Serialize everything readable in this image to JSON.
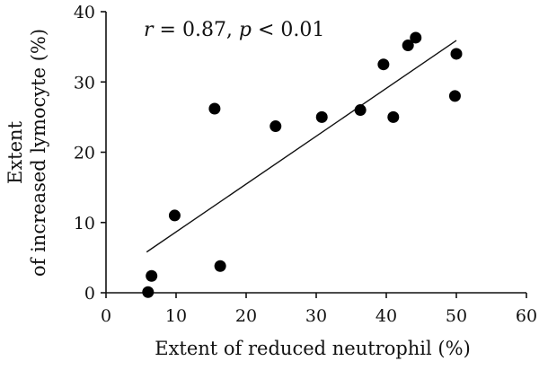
{
  "chart_data": {
    "type": "scatter",
    "xlabel": "Extent of reduced neutrophil (%)",
    "ylabel_lines": [
      "Extent",
      "of increased lymocyte (%)"
    ],
    "xlim": [
      0,
      60
    ],
    "ylim": [
      0,
      40
    ],
    "xticks": [
      0,
      10,
      20,
      30,
      40,
      50,
      60
    ],
    "yticks": [
      0,
      10,
      20,
      30,
      40
    ],
    "annotation": {
      "r_label": "r",
      "r_text": " = 0.87, ",
      "p_label": "p",
      "p_text": " < 0.01"
    },
    "grid": false,
    "legend": "none",
    "points": [
      {
        "x": 6.0,
        "y": 0.1
      },
      {
        "x": 6.5,
        "y": 2.4
      },
      {
        "x": 9.8,
        "y": 11.0
      },
      {
        "x": 15.5,
        "y": 26.2
      },
      {
        "x": 16.3,
        "y": 3.8
      },
      {
        "x": 24.2,
        "y": 23.7
      },
      {
        "x": 30.8,
        "y": 25.0
      },
      {
        "x": 36.3,
        "y": 26.0
      },
      {
        "x": 39.6,
        "y": 32.5
      },
      {
        "x": 41.0,
        "y": 25.0
      },
      {
        "x": 43.1,
        "y": 35.2
      },
      {
        "x": 44.2,
        "y": 36.3
      },
      {
        "x": 49.8,
        "y": 28.0
      },
      {
        "x": 50.0,
        "y": 34.0
      }
    ],
    "fit_line": {
      "x": [
        5.8,
        50.0
      ],
      "y": [
        5.8,
        35.9
      ]
    }
  }
}
